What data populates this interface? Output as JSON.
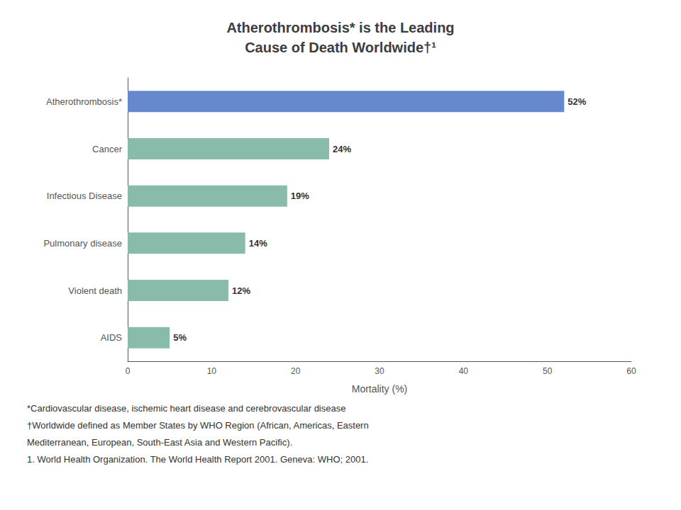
{
  "chart_data": {
    "type": "bar",
    "orientation": "horizontal",
    "title": "Atherothrombosis* is the Leading\nCause of Death Worldwide†¹",
    "xlabel": "Mortality (%)",
    "categories": [
      "Atherothrombosis*",
      "Cancer",
      "Infectious Disease",
      "Pulmonary disease",
      "Violent death",
      "AIDS"
    ],
    "values": [
      52,
      24,
      19,
      14,
      12,
      5
    ],
    "value_labels": [
      "52%",
      "24%",
      "19%",
      "14%",
      "12%",
      "5%"
    ],
    "data_labels": true,
    "colors": [
      "#6688cc",
      "#88bbaa",
      "#88bbaa",
      "#88bbaa",
      "#88bbaa",
      "#88bbaa"
    ],
    "xlim": [
      0,
      60
    ],
    "xticks": [
      0,
      10,
      20,
      30,
      40,
      50,
      60
    ],
    "grid": false,
    "annotations": [
      "*Cardiovascular disease, ischemic heart disease and cerebrovascular disease",
      "†Worldwide defined as Member States by WHO Region (African, Americas, Eastern",
      "Mediterranean, European, South-East Asia and Western Pacific).",
      "1. World Health Organization. The World Health Report 2001. Geneva: WHO; 2001."
    ]
  }
}
